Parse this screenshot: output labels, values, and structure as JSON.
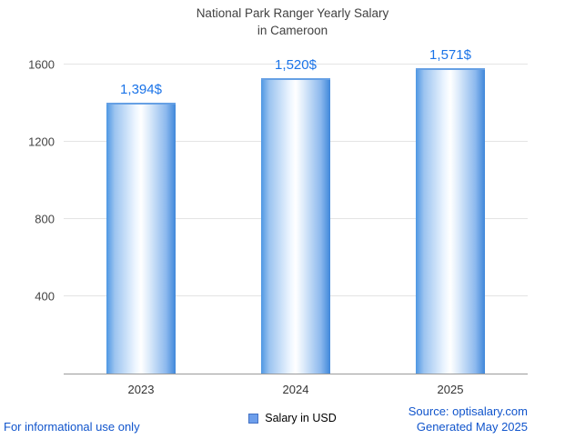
{
  "title": {
    "line1": "National Park Ranger Yearly Salary",
    "line2": "in Cameroon"
  },
  "chart_data": {
    "type": "bar",
    "title": "National Park Ranger Yearly Salary in Cameroon",
    "categories": [
      "2023",
      "2024",
      "2025"
    ],
    "values": [
      1394,
      1520,
      1571
    ],
    "value_labels": [
      "1,394$",
      "1,520$",
      "1,571$"
    ],
    "series_name": "Salary in USD",
    "xlabel": "",
    "ylabel": "",
    "ylim": [
      0,
      1600
    ],
    "yticks": [
      400,
      800,
      1200,
      1600
    ],
    "grid": true,
    "legend_position": "bottom"
  },
  "legend": {
    "label": "Salary in USD"
  },
  "footer": {
    "left": "For informational use only",
    "source": "Source: optisalary.com",
    "generated": "Generated May 2025"
  },
  "colors": {
    "bar_edge_blue": "#4e97e3",
    "value_label": "#1a73e8",
    "footer_text": "#1155cc"
  }
}
